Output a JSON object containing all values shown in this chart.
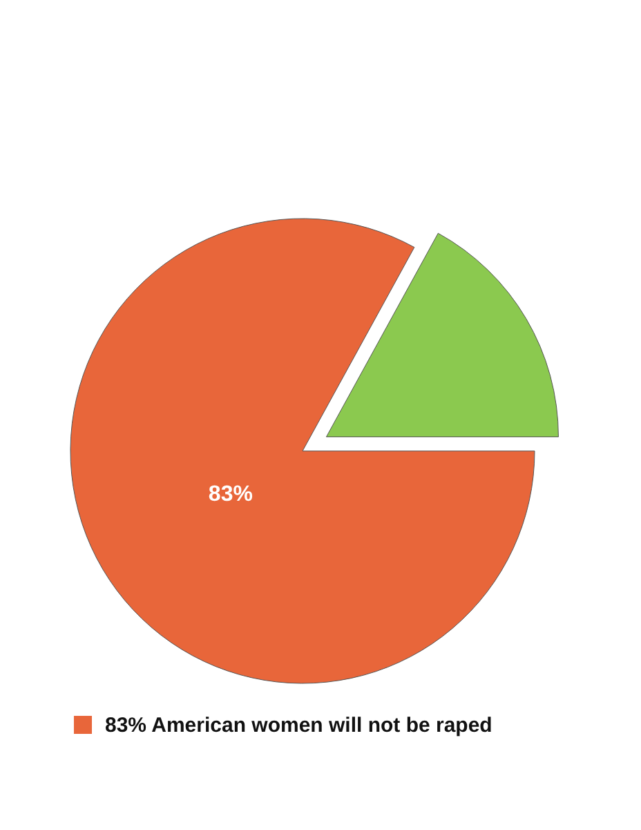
{
  "chart_data": {
    "type": "pie",
    "categories": [
      "83% American women will not be raped",
      null
    ],
    "values": [
      83,
      17
    ],
    "colors": [
      "#e8663a",
      "#8bc94f"
    ],
    "value_labels": [
      "83%",
      null
    ],
    "legend": "bottom left"
  }
}
